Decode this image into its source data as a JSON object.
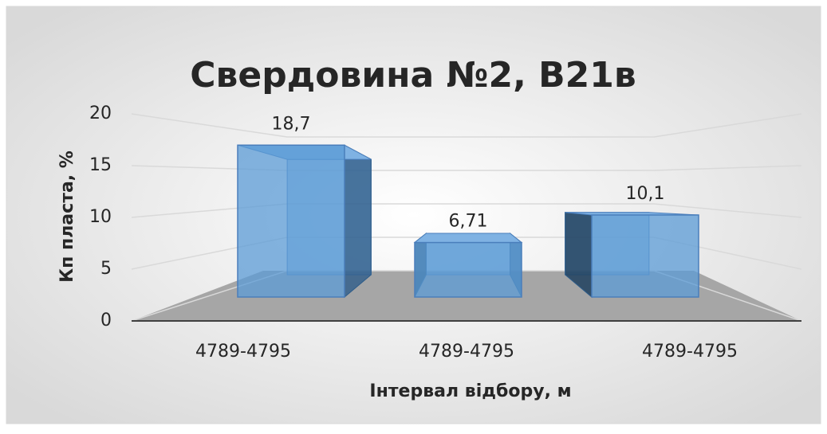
{
  "chart_data": {
    "type": "bar3d",
    "title": "Свердовина №2, В21в",
    "y_label": "Кп пласта, %",
    "x_label": "Інтервал відбору, м",
    "categories": [
      "4789-4795",
      "4789-4795",
      "4789-4795"
    ],
    "values": [
      18.7,
      6.71,
      10.1
    ],
    "value_labels": [
      "18,7",
      "6,71",
      "10,1"
    ],
    "color": "#5b9bd5",
    "ylim": [
      0,
      20
    ],
    "yticks": [
      0,
      5,
      10,
      15,
      20
    ],
    "grid": true
  }
}
